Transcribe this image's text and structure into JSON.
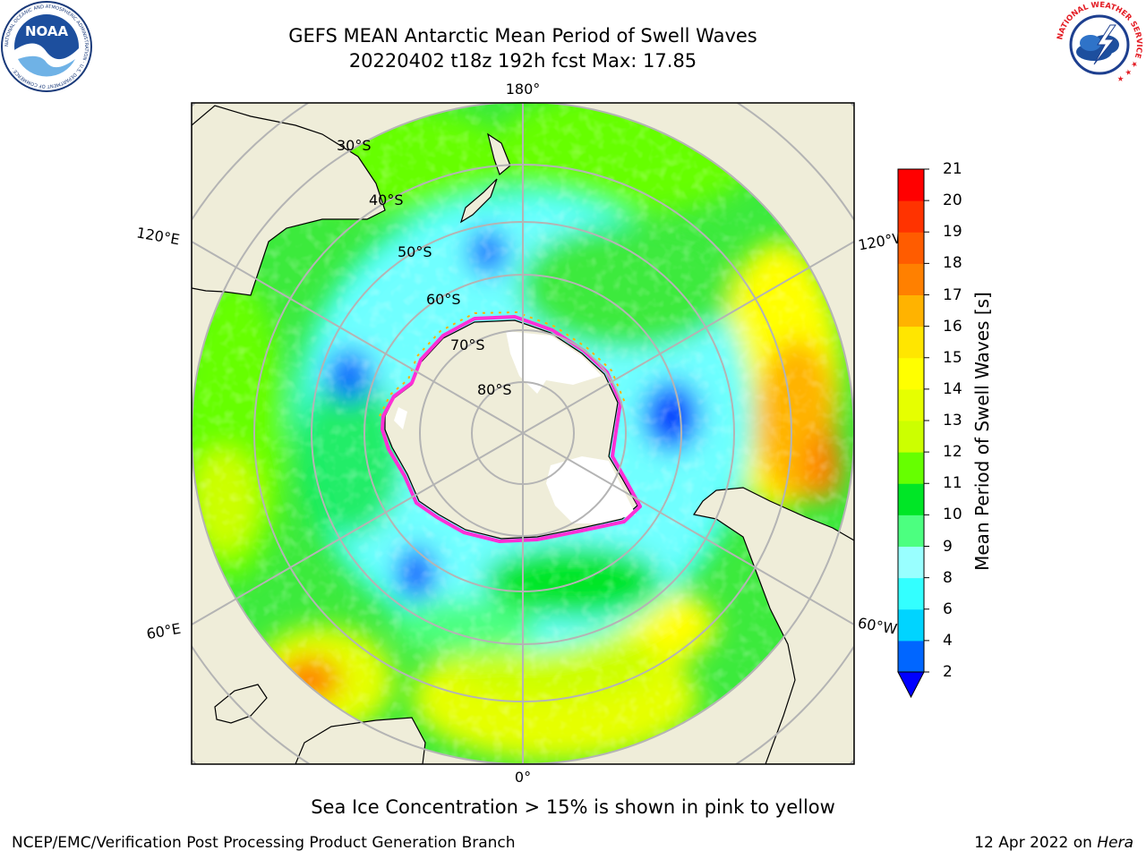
{
  "header": {
    "title_line_1": "GEFS MEAN Antarctic Mean Period of Swell Waves",
    "title_line_2": "20220402 t18z 192h fcst   Max: 17.85"
  },
  "logos": {
    "noaa_text": "NOAA",
    "noaa_ring_text": "NATIONAL OCEANIC AND ATMOSPHERIC ADMINISTRATION · U.S. DEPARTMENT OF COMMERCE ·",
    "nws_ring_text": "NATIONAL WEATHER SERVICE ★ ★ ★"
  },
  "map": {
    "projection": "south-polar-stereographic",
    "longitude_labels": {
      "top": "180°",
      "bottom": "0°",
      "left_upper": "120°E",
      "left_lower": "60°E",
      "right_upper": "120°W",
      "right_lower": "60°W"
    },
    "latitude_labels": [
      "30°S",
      "40°S",
      "50°S",
      "60°S",
      "70°S",
      "80°S"
    ],
    "colors": {
      "land": "#efedd9",
      "ice_free_shelf": "#ffffff",
      "sea_ice_edge": "#ff2fd6",
      "graticule": "#b4b4b4"
    }
  },
  "colorbar": {
    "label": "Mean Period of Swell Waves [s]",
    "ticks": [
      "21",
      "20",
      "19",
      "18",
      "17",
      "16",
      "15",
      "14",
      "13",
      "12",
      "11",
      "10",
      "9",
      "8",
      "6",
      "4",
      "2"
    ],
    "bands": [
      {
        "from": 2,
        "to": 4,
        "color": "#0066ff"
      },
      {
        "from": 4,
        "to": 6,
        "color": "#00d4ff"
      },
      {
        "from": 6,
        "to": 8,
        "color": "#33ffff"
      },
      {
        "from": 8,
        "to": 9,
        "color": "#99ffff"
      },
      {
        "from": 9,
        "to": 10,
        "color": "#4cff80"
      },
      {
        "from": 10,
        "to": 11,
        "color": "#00e626"
      },
      {
        "from": 11,
        "to": 12,
        "color": "#66ff00"
      },
      {
        "from": 12,
        "to": 13,
        "color": "#ccff00"
      },
      {
        "from": 13,
        "to": 14,
        "color": "#e6ff00"
      },
      {
        "from": 14,
        "to": 15,
        "color": "#ffff00"
      },
      {
        "from": 15,
        "to": 16,
        "color": "#ffe600"
      },
      {
        "from": 16,
        "to": 17,
        "color": "#ffb300"
      },
      {
        "from": 17,
        "to": 18,
        "color": "#ff8000"
      },
      {
        "from": 18,
        "to": 19,
        "color": "#ff5c00"
      },
      {
        "from": 19,
        "to": 20,
        "color": "#ff3300"
      },
      {
        "from": 20,
        "to": 21,
        "color": "#ff0000"
      }
    ],
    "under_color": "#0000ff"
  },
  "footer": {
    "note": "Sea Ice Concentration > 15% is shown in pink to yellow",
    "credit_left": "NCEP/EMC/Verification Post Processing Product Generation Branch",
    "credit_right_date": "12 Apr 2022 on",
    "credit_right_host": "Hera"
  }
}
